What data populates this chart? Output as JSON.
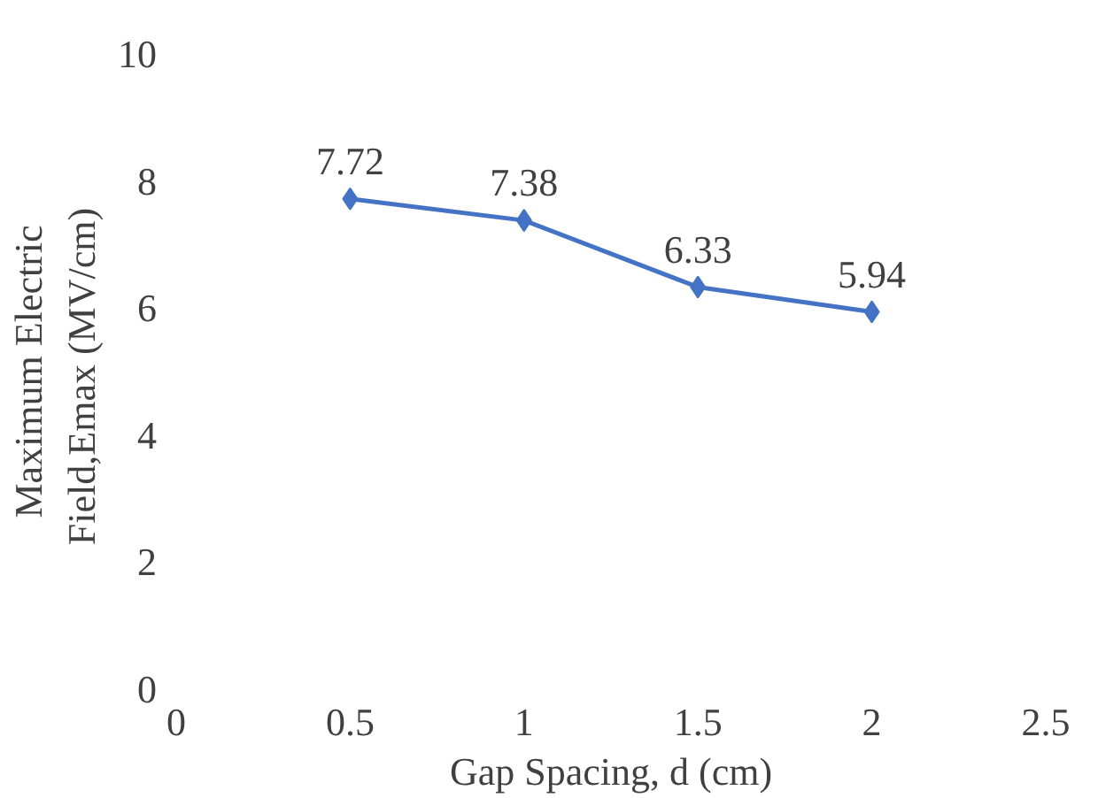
{
  "chart_data": {
    "type": "line",
    "xlabel": "Gap Spacing, d (cm)",
    "ylabel": "Maximum Electric\nField,Emax  (MV/cm)",
    "x": [
      0.5,
      1,
      1.5,
      2
    ],
    "series": [
      {
        "color": "#4472c4",
        "values": [
          7.72,
          7.38,
          6.33,
          5.94
        ]
      }
    ],
    "xlim": [
      0,
      2.5
    ],
    "xticks": [
      0,
      0.5,
      1,
      1.5,
      2,
      2.5
    ],
    "ylim": [
      0,
      10
    ],
    "yticks": [
      0,
      2,
      4,
      6,
      8,
      10
    ],
    "marker": "diamond",
    "data_labels": true,
    "grid": false
  }
}
